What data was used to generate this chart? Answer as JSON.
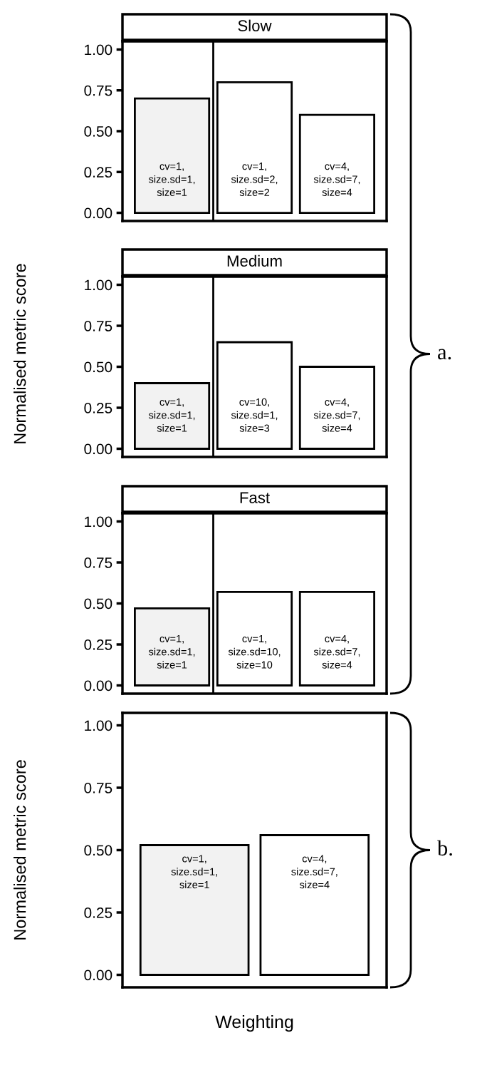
{
  "chart_data": [
    {
      "type": "bar",
      "title": "Slow",
      "categories": [
        "cv=1,\nsize.sd=1,\nsize=1",
        "cv=1,\nsize.sd=2,\nsize=2",
        "cv=4,\nsize.sd=7,\nsize=4"
      ],
      "values": [
        0.7,
        0.8,
        0.6
      ],
      "colors": [
        "#f2f2f2",
        "#ffffff",
        "#ffffff"
      ],
      "ylim": [
        -0.05,
        1.05
      ],
      "yticks": [
        {
          "value": 0,
          "label": "0.00"
        },
        {
          "value": 0.25,
          "label": "0.25"
        },
        {
          "value": 0.5,
          "label": "0.50"
        },
        {
          "value": 0.75,
          "label": "0.75"
        },
        {
          "value": 1,
          "label": "1.00"
        }
      ],
      "tick_labels": "y",
      "grid": false,
      "legend": false
    },
    {
      "type": "bar",
      "title": "Medium",
      "ylabel": "Normalised metric score",
      "annotations": [
        "a."
      ],
      "categories": [
        "cv=1,\nsize.sd=1,\nsize=1",
        "cv=10,\nsize.sd=1,\nsize=3",
        "cv=4,\nsize.sd=7,\nsize=4"
      ],
      "values": [
        0.4,
        0.65,
        0.5
      ],
      "colors": [
        "#f2f2f2",
        "#ffffff",
        "#ffffff"
      ],
      "ylim": [
        -0.05,
        1.05
      ],
      "yticks": [
        {
          "value": 0,
          "label": "0.00"
        },
        {
          "value": 0.25,
          "label": "0.25"
        },
        {
          "value": 0.5,
          "label": "0.50"
        },
        {
          "value": 0.75,
          "label": "0.75"
        },
        {
          "value": 1,
          "label": "1.00"
        }
      ],
      "tick_labels": "y",
      "grid": false,
      "legend": false
    },
    {
      "type": "bar",
      "title": "Fast",
      "categories": [
        "cv=1,\nsize.sd=1,\nsize=1",
        "cv=1,\nsize.sd=10,\nsize=10",
        "cv=4,\nsize.sd=7,\nsize=4"
      ],
      "values": [
        0.47,
        0.57,
        0.57
      ],
      "colors": [
        "#f2f2f2",
        "#ffffff",
        "#ffffff"
      ],
      "ylim": [
        -0.05,
        1.05
      ],
      "yticks": [
        {
          "value": 0,
          "label": "0.00"
        },
        {
          "value": 0.25,
          "label": "0.25"
        },
        {
          "value": 0.5,
          "label": "0.50"
        },
        {
          "value": 0.75,
          "label": "0.75"
        },
        {
          "value": 1,
          "label": "1.00"
        }
      ],
      "tick_labels": "y",
      "grid": false,
      "legend": false
    },
    {
      "type": "bar",
      "xlabel": "Weighting",
      "ylabel": "Normalised metric score",
      "annotations": [
        "b."
      ],
      "categories": [
        "cv=1,\nsize.sd=1,\nsize=1",
        "cv=4,\nsize.sd=7,\nsize=4"
      ],
      "values": [
        0.52,
        0.56
      ],
      "colors": [
        "#f2f2f2",
        "#ffffff"
      ],
      "ylim": [
        -0.05,
        1.05
      ],
      "yticks": [
        {
          "value": 0,
          "label": "0.00"
        },
        {
          "value": 0.25,
          "label": "0.25"
        },
        {
          "value": 0.5,
          "label": "0.50"
        },
        {
          "value": 0.75,
          "label": "0.75"
        },
        {
          "value": 1,
          "label": "1.00"
        }
      ],
      "tick_labels": "y",
      "grid": false,
      "legend": false
    }
  ]
}
